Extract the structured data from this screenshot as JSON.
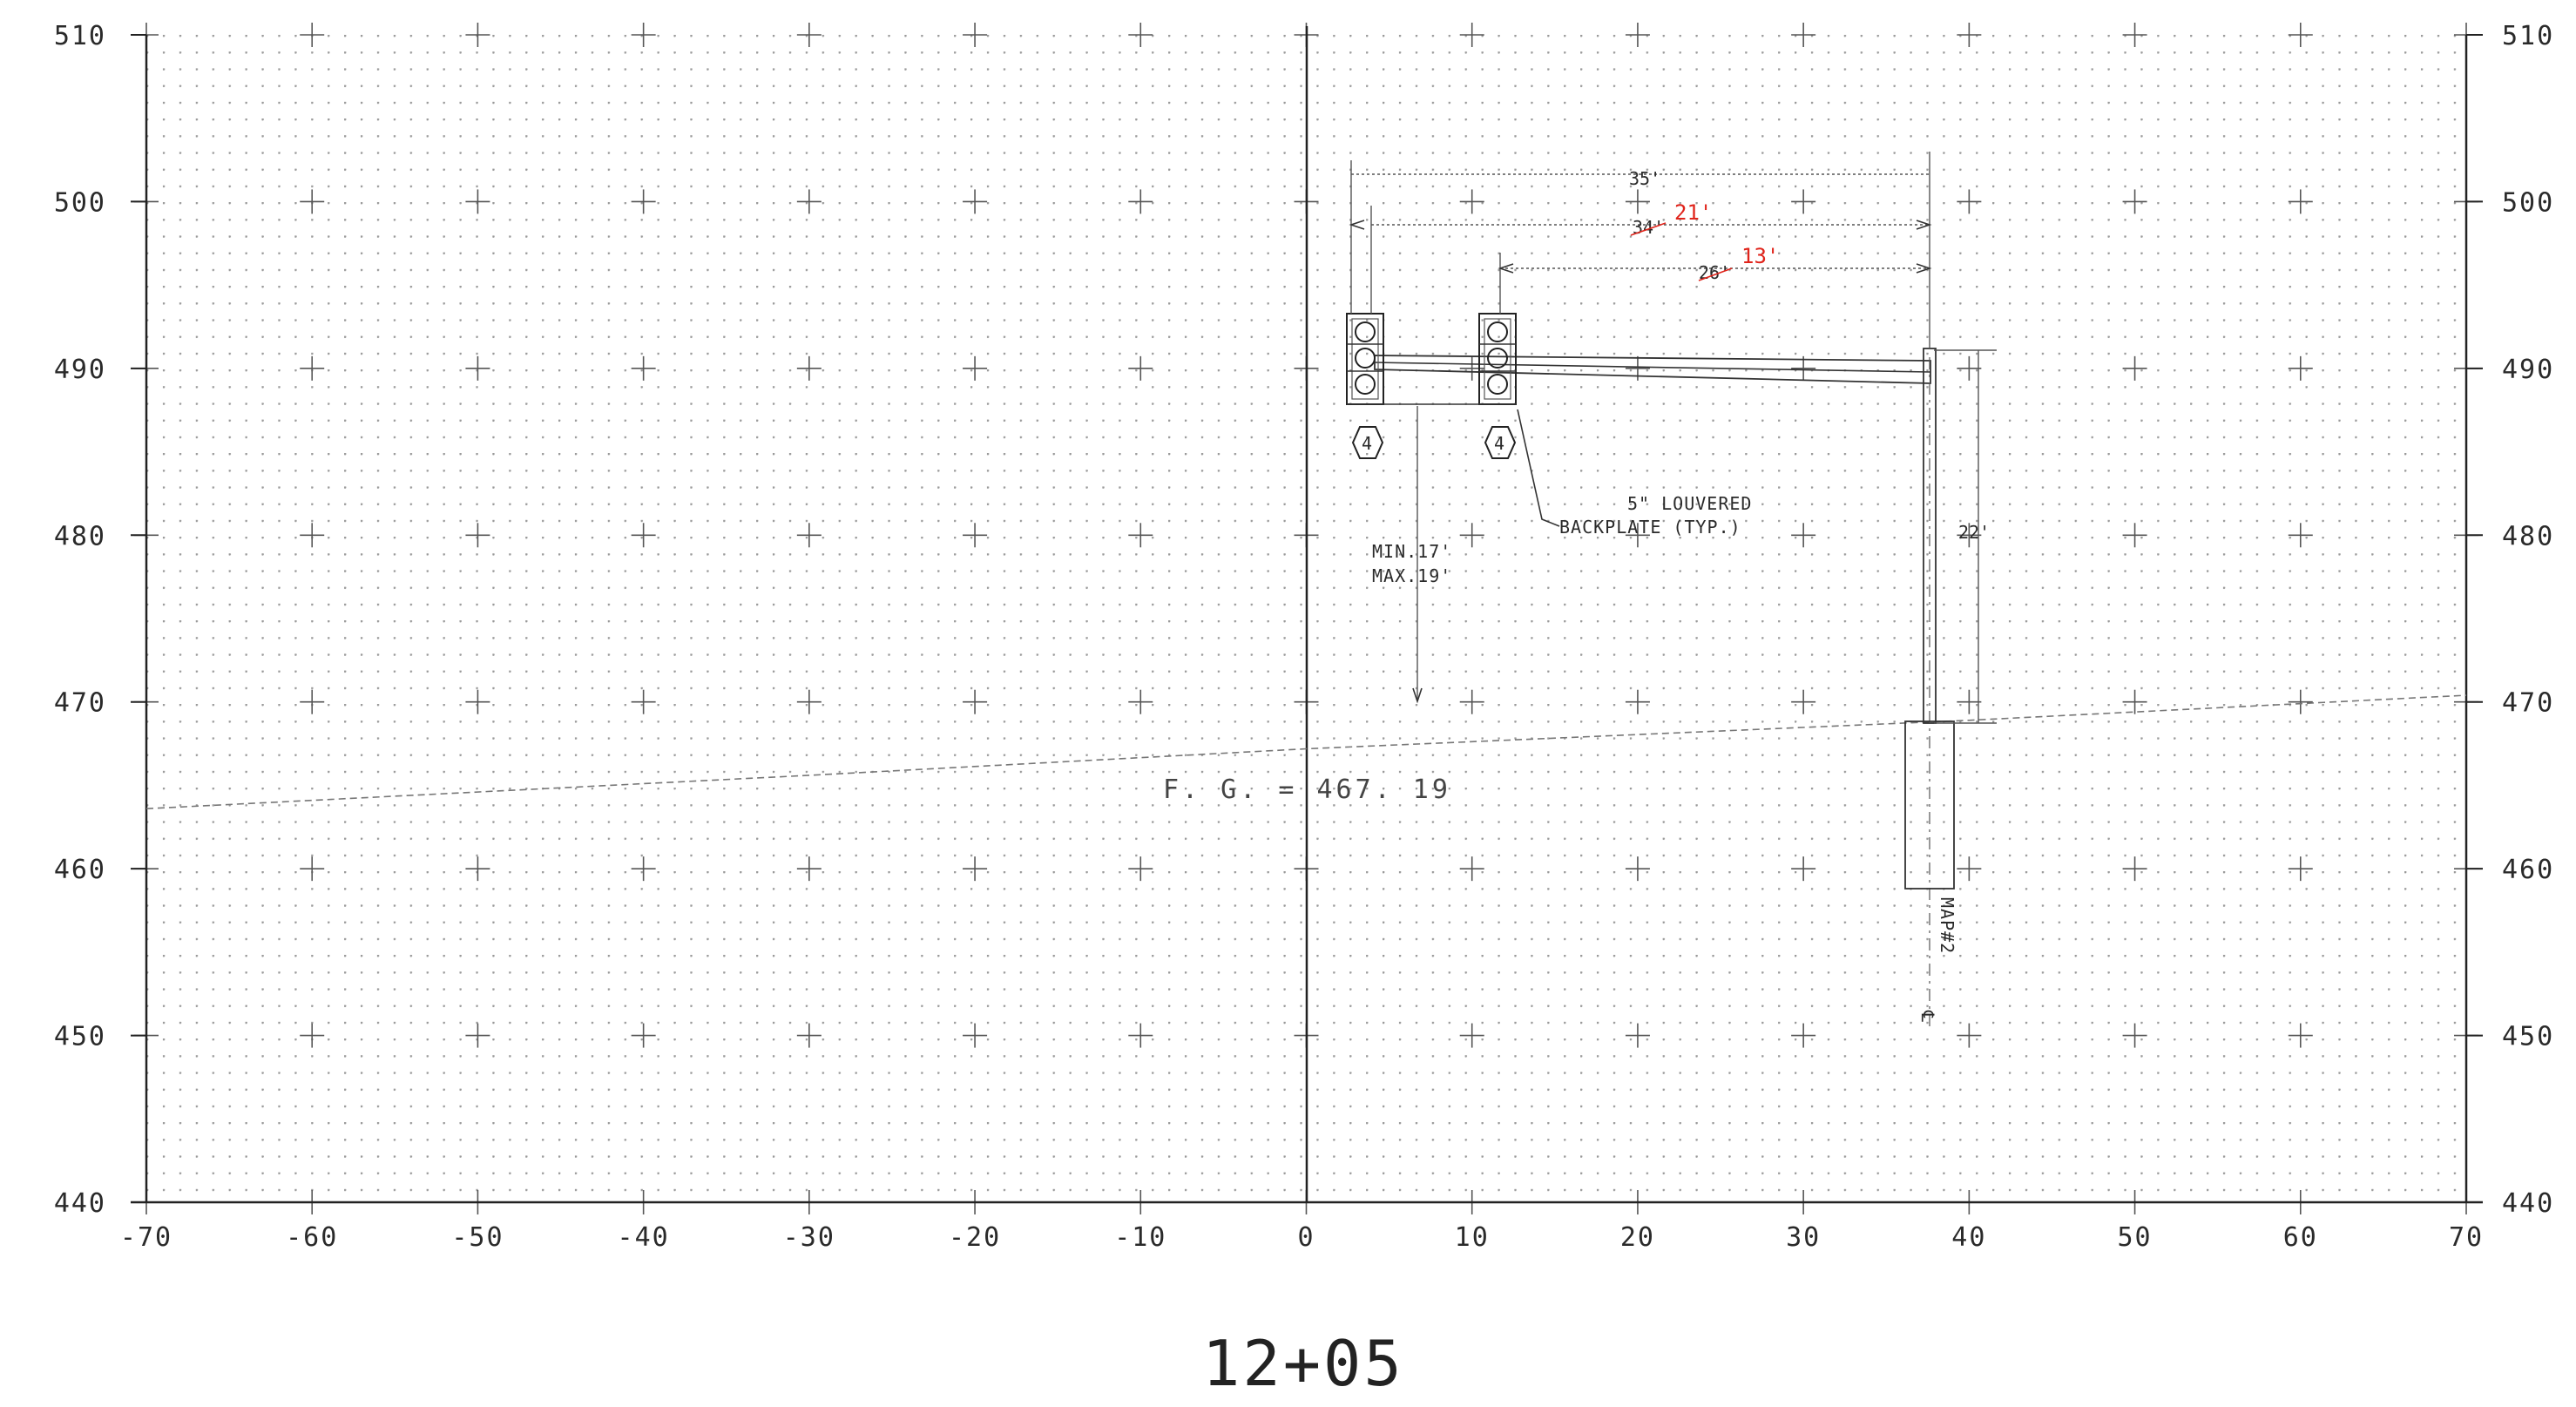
{
  "drawing": {
    "station": "12+05",
    "ground_label": "F. G. = 467. 19",
    "x_ticks": [
      "-70",
      "-60",
      "-50",
      "-40",
      "-30",
      "-20",
      "-10",
      "0",
      "10",
      "20",
      "30",
      "40",
      "50",
      "60",
      "70"
    ],
    "y_ticks": [
      "510",
      "500",
      "490",
      "480",
      "470",
      "460",
      "450",
      "440"
    ],
    "x_range": [
      -70,
      70
    ],
    "y_range": [
      440,
      510
    ],
    "ground_profile": [
      [
        -70,
        463.6
      ],
      [
        -30,
        465.6
      ],
      [
        0,
        467.19
      ],
      [
        40,
        468.9
      ],
      [
        70,
        470.4
      ]
    ]
  },
  "structure": {
    "signal_heads": [
      {
        "offset": 3.5,
        "label": "4"
      },
      {
        "offset": 11.5,
        "label": "4"
      }
    ],
    "pole_offset": 38,
    "arm_elevation": 490,
    "foundation": {
      "top": 468.8,
      "bottom": 458.8
    }
  },
  "dimensions": {
    "d35": "35'",
    "d34": "34'",
    "d26": "26'",
    "d21": "21'",
    "d13": "13'",
    "pole_height": "22'"
  },
  "notes": {
    "clearance_line1": "MIN.17'",
    "clearance_line2": "MAX.19'",
    "backplate_line1": "5\" LOUVERED",
    "backplate_line2": "BACKPLATE (TYP.)",
    "pole_label": "MAP#2"
  },
  "colors": {
    "ink": "#222222",
    "red_markup": "#e0241b"
  }
}
